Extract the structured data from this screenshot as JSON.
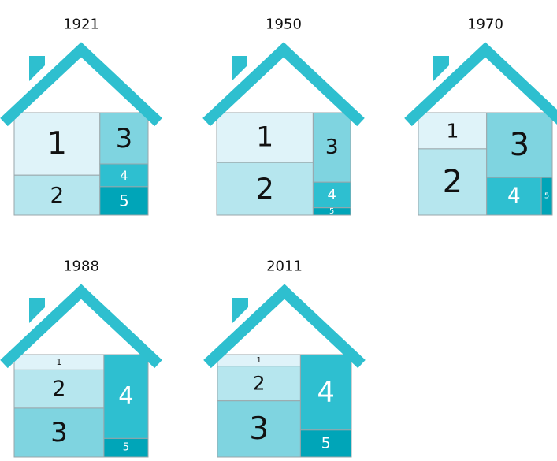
{
  "chart_data": {
    "type": "treemap",
    "categories": [
      "1",
      "2",
      "3",
      "4",
      "5"
    ],
    "colors": [
      "#dff3f9",
      "#b6e6ee",
      "#7fd4e0",
      "#2ebfd0",
      "#00a5b8"
    ],
    "houses": [
      {
        "title": "1921",
        "values": [
          39,
          25,
          18,
          8,
          10
        ]
      },
      {
        "title": "1950",
        "values": [
          35,
          37,
          19,
          7,
          2
        ]
      },
      {
        "title": "1970",
        "values": [
          18,
          33,
          31,
          15,
          3
        ]
      },
      {
        "title": "1988",
        "values": [
          10,
          25,
          32,
          27,
          6
        ]
      },
      {
        "title": "2011",
        "values": [
          7,
          21,
          34,
          28,
          10
        ]
      }
    ]
  }
}
